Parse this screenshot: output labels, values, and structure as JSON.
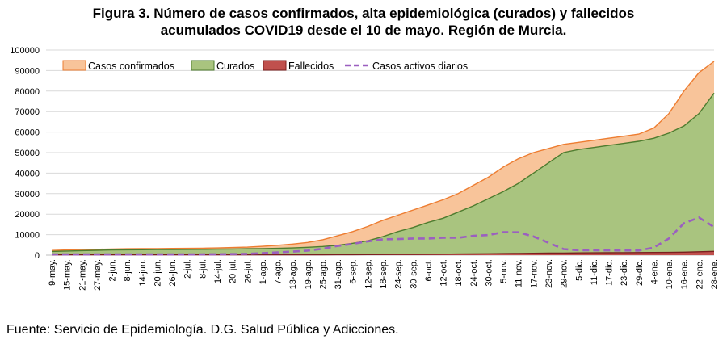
{
  "title_line1": "Figura 3. Número de casos confirmados, alta epidemiológica (curados) y fallecidos",
  "title_line2": "acumulados COVID19 desde el 10 de mayo. Región de Murcia.",
  "footer": "Fuente: Servicio de Epidemiología. D.G. Salud Pública y Adicciones.",
  "colors": {
    "confirmados_fill": "#f8c49a",
    "confirmados_line": "#ed7d31",
    "curados_fill": "#a9c47f",
    "curados_line": "#4e7c2f",
    "fallecidos_fill": "#c0504d",
    "fallecidos_line": "#7b1f1f",
    "activos_line": "#9b5fc0",
    "grid": "#d9d9d9"
  },
  "chart_data": {
    "type": "area",
    "ylim": [
      0,
      100000
    ],
    "yticks": [
      0,
      10000,
      20000,
      30000,
      40000,
      50000,
      60000,
      70000,
      80000,
      90000,
      100000
    ],
    "ytick_labels": [
      "0",
      "10000",
      "20000",
      "30000",
      "40000",
      "50000",
      "60000",
      "70000",
      "80000",
      "90000",
      "100000"
    ],
    "legend_position": "top",
    "grid": true,
    "categories": [
      "9-may.",
      "15-may.",
      "21-may.",
      "27-may.",
      "2-jun.",
      "8-jun.",
      "14-jun.",
      "20-jun.",
      "26-jun.",
      "2-jul.",
      "8-jul.",
      "14-jul.",
      "20-jul.",
      "26-jul.",
      "1-ago.",
      "7-ago.",
      "13-ago.",
      "19-ago.",
      "25-ago.",
      "31-ago.",
      "6-sep.",
      "12-sep.",
      "18-sep.",
      "24-sep.",
      "30-sep.",
      "6-oct.",
      "12-oct.",
      "18-oct.",
      "24-oct.",
      "30-oct.",
      "5-nov.",
      "11-nov.",
      "17-nov.",
      "23-nov.",
      "29-nov.",
      "5-dic.",
      "11-dic.",
      "17-dic.",
      "23-dic.",
      "29-dic.",
      "4-ene.",
      "10-ene.",
      "16-ene.",
      "22-ene.",
      "28-ene."
    ],
    "series": [
      {
        "name": "Casos confirmados",
        "style": "area",
        "values": [
          2300,
          2500,
          2700,
          2850,
          3000,
          3100,
          3150,
          3200,
          3250,
          3300,
          3400,
          3500,
          3700,
          3900,
          4300,
          4800,
          5400,
          6200,
          7500,
          9500,
          11500,
          14000,
          17000,
          19500,
          22000,
          24500,
          27000,
          30000,
          34000,
          38000,
          43000,
          47000,
          50000,
          52000,
          54000,
          55000,
          56000,
          57000,
          58000,
          59000,
          62000,
          69000,
          80000,
          89000,
          94500
        ]
      },
      {
        "name": "Curados",
        "style": "area",
        "values": [
          1800,
          2000,
          2200,
          2350,
          2500,
          2600,
          2650,
          2700,
          2750,
          2800,
          2850,
          2900,
          3000,
          3100,
          3200,
          3300,
          3500,
          3800,
          4200,
          4800,
          5800,
          7000,
          9000,
          11500,
          13500,
          16000,
          18000,
          21000,
          24000,
          27500,
          31000,
          35000,
          40000,
          45000,
          50000,
          51500,
          52500,
          53500,
          54500,
          55500,
          57000,
          59500,
          63000,
          69000,
          79000
        ]
      },
      {
        "name": "Fallecidos",
        "style": "area",
        "values": [
          120,
          140,
          150,
          155,
          160,
          160,
          160,
          160,
          160,
          165,
          165,
          165,
          170,
          170,
          170,
          175,
          180,
          190,
          200,
          220,
          240,
          270,
          300,
          340,
          390,
          440,
          480,
          540,
          600,
          680,
          760,
          840,
          920,
          980,
          1040,
          1090,
          1130,
          1170,
          1210,
          1250,
          1290,
          1350,
          1450,
          1650,
          1850
        ]
      },
      {
        "name": "Casos activos diarios",
        "style": "dashed-line",
        "values": [
          380,
          360,
          350,
          340,
          340,
          340,
          340,
          340,
          340,
          340,
          380,
          430,
          530,
          630,
          930,
          1330,
          1720,
          2210,
          3100,
          4480,
          5460,
          6730,
          7700,
          7820,
          8110,
          8060,
          8520,
          8460,
          9400,
          9820,
          11240,
          11160,
          9080,
          6020,
          2960,
          2410,
          2370,
          2330,
          2290,
          2250,
          3710,
          8150,
          15550,
          18350,
          13650
        ]
      }
    ]
  }
}
